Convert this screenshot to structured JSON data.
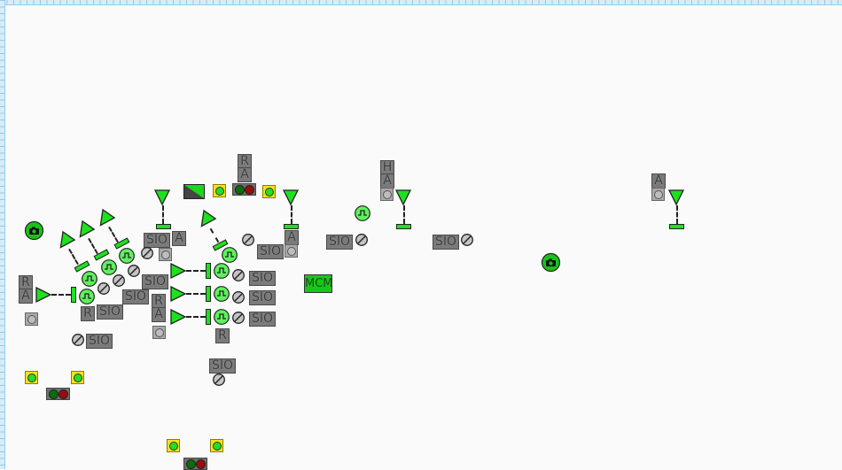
{
  "labels": {
    "sio": "SIO",
    "r": "R",
    "a": "A",
    "h": "H",
    "mcm": "MCM"
  },
  "colors": {
    "signal_green": "#1fe01f",
    "label_gray": "#7a7a7a",
    "yellow": "#f4e21a",
    "red_lamp": "#9a0d0d",
    "green_lamp": "#0b6e0b",
    "ruler": "#d7ecf8"
  },
  "icons": {
    "camera": "camera-icon",
    "pulse": "pulse-icon",
    "no": "disabled-icon",
    "triangle": "signal-triangle-icon"
  }
}
